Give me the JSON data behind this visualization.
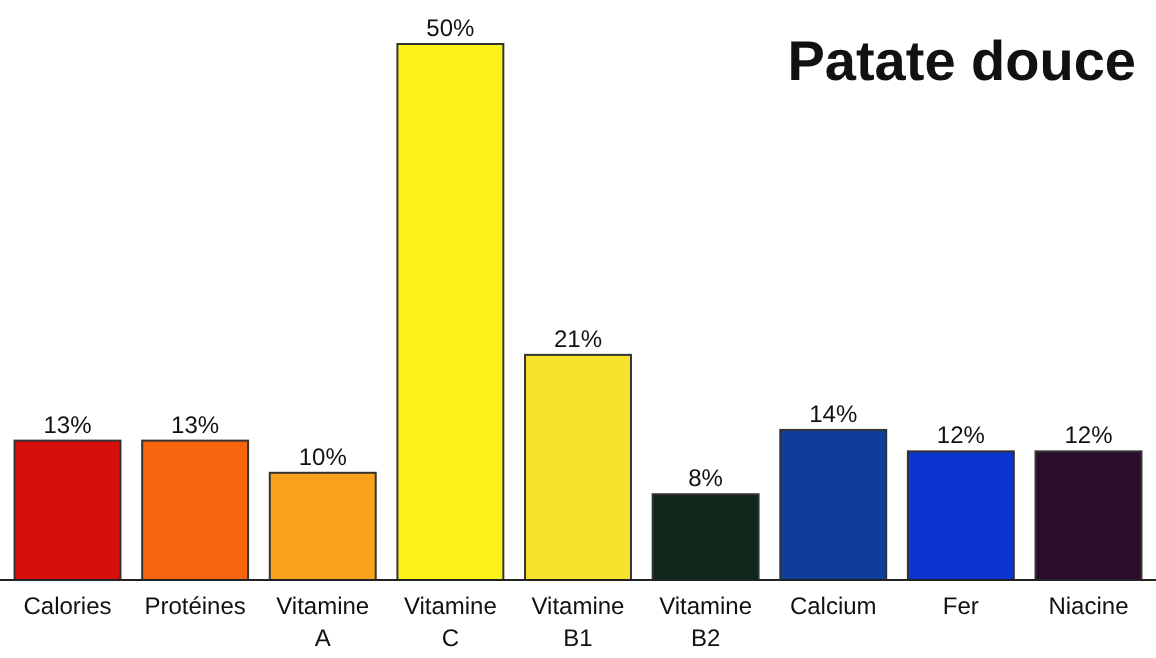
{
  "chart_data": {
    "type": "bar",
    "title": "Patate douce",
    "categories": [
      "Calories",
      "Protéines",
      "Vitamine A",
      "Vitamine C",
      "Vitamine B1",
      "Vitamine B2",
      "Calcium",
      "Fer",
      "Niacine"
    ],
    "values": [
      13,
      13,
      10,
      50,
      21,
      8,
      14,
      12,
      12
    ],
    "colors": [
      "#d70f0a",
      "#f8650f",
      "#f9a21c",
      "#fbf21a",
      "#f9e22c",
      "#10261a",
      "#0f3e9a",
      "#0c35cf",
      "#2a0c2b"
    ],
    "value_labels": [
      "13%",
      "13%",
      "10%",
      "50%",
      "21%",
      "8%",
      "14%",
      "12%",
      "12%"
    ]
  }
}
